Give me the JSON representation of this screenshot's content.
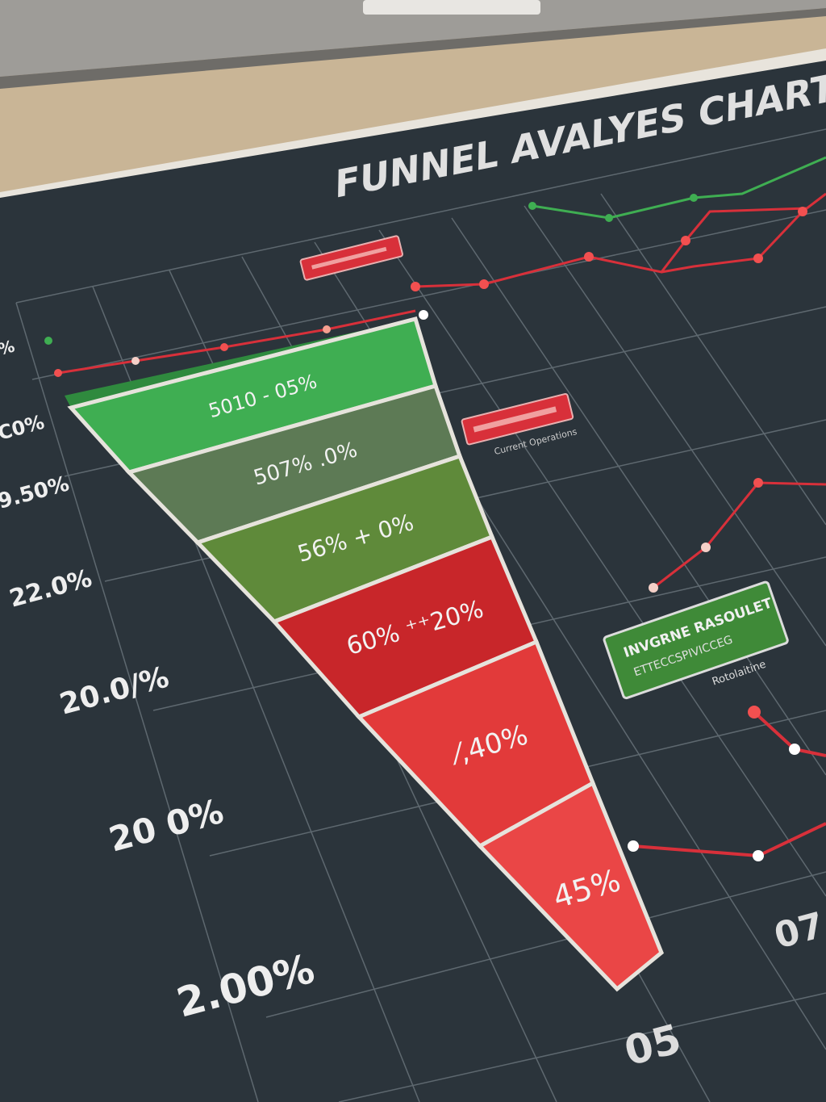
{
  "title": "FUNNEL AVALYES CHART",
  "colors": {
    "paper": "#2b343b",
    "desk": "#c9b596",
    "grid": "#6b767d",
    "green": "#3fae52",
    "olive": "#5d7a55",
    "olive2": "#5f8a3a",
    "red_dark": "#c8262a",
    "red": "#e23a3a",
    "red_light": "#ea4646",
    "line_red": "#d8303a",
    "line_green": "#3fae52"
  },
  "chart_data": {
    "type": "funnel",
    "title": "FUNNEL AVALYES CHART",
    "stages": [
      {
        "label": "5010 - 05%",
        "color": "#3fae52"
      },
      {
        "label": "507% .0%",
        "color": "#5d7a55"
      },
      {
        "label": "56% + 0%",
        "color": "#5f8a3a"
      },
      {
        "label": "60% ⁺⁺20%",
        "color": "#c8262a"
      },
      {
        "label": "⁄,40%",
        "color": "#e23a3a"
      },
      {
        "label": "45%",
        "color": "#ea4646"
      }
    ],
    "y_tick_labels": [
      "%",
      "C0%",
      "9.50%",
      "22.0%",
      "20.0/%",
      "20 0%",
      "2.00%"
    ],
    "x_tick_labels": [
      "05",
      "07"
    ],
    "grid": true
  },
  "callouts": {
    "green_box_line1": "INVGRNE RASOULET",
    "green_box_line2": "ETTECCSPIVICCEG",
    "green_box_caption": "Rotolaitine",
    "red_box_mid_caption": "Current Operations"
  }
}
